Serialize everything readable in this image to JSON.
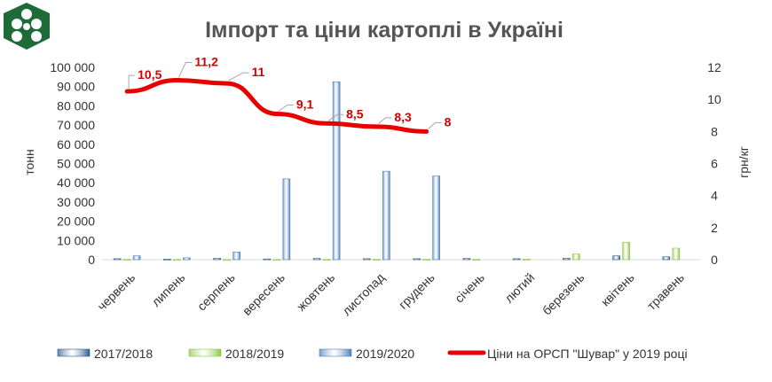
{
  "logo": {
    "icon": "agro-cluster-logo"
  },
  "chart_data": {
    "type": "bar",
    "title": "Імпорт та ціни картоплі в Україні",
    "ylabel": "тонн",
    "y2label": "грн/кг",
    "ylim": [
      0,
      100000
    ],
    "y2lim": [
      0,
      12
    ],
    "yticks": [
      "0",
      "10 000",
      "20 000",
      "30 000",
      "40 000",
      "50 000",
      "60 000",
      "70 000",
      "80 000",
      "90 000",
      "100 000"
    ],
    "y2ticks": [
      "0",
      "2",
      "4",
      "6",
      "8",
      "10",
      "12"
    ],
    "categories": [
      "червень",
      "липень",
      "серпень",
      "вересень",
      "жовтень",
      "листопад",
      "грудень",
      "січень",
      "лютий",
      "березень",
      "квітень",
      "травень"
    ],
    "series": [
      {
        "name": "2017/2018",
        "color": "#2e5a8a",
        "values": [
          500,
          300,
          700,
          400,
          600,
          500,
          500,
          600,
          500,
          700,
          2000,
          1500
        ]
      },
      {
        "name": "2018/2019",
        "color": "#8dc63f",
        "values": [
          200,
          100,
          100,
          100,
          200,
          200,
          200,
          200,
          300,
          3000,
          9000,
          6000
        ]
      },
      {
        "name": "2019/2020",
        "color": "#4a7ebb",
        "values": [
          2000,
          1000,
          4000,
          42000,
          92500,
          46000,
          43500,
          null,
          null,
          null,
          null,
          null
        ]
      }
    ],
    "line_series": {
      "name": "Ціни на ОРСП \"Шувар\" у 2019 році",
      "color": "#e60000",
      "values": [
        10.5,
        11.2,
        11,
        9.1,
        8.5,
        8.3,
        8
      ],
      "labels": [
        "10,5",
        "11,2",
        "11",
        "9,1",
        "8,5",
        "8,3",
        "8"
      ]
    },
    "grid": false,
    "legend_position": "bottom"
  }
}
